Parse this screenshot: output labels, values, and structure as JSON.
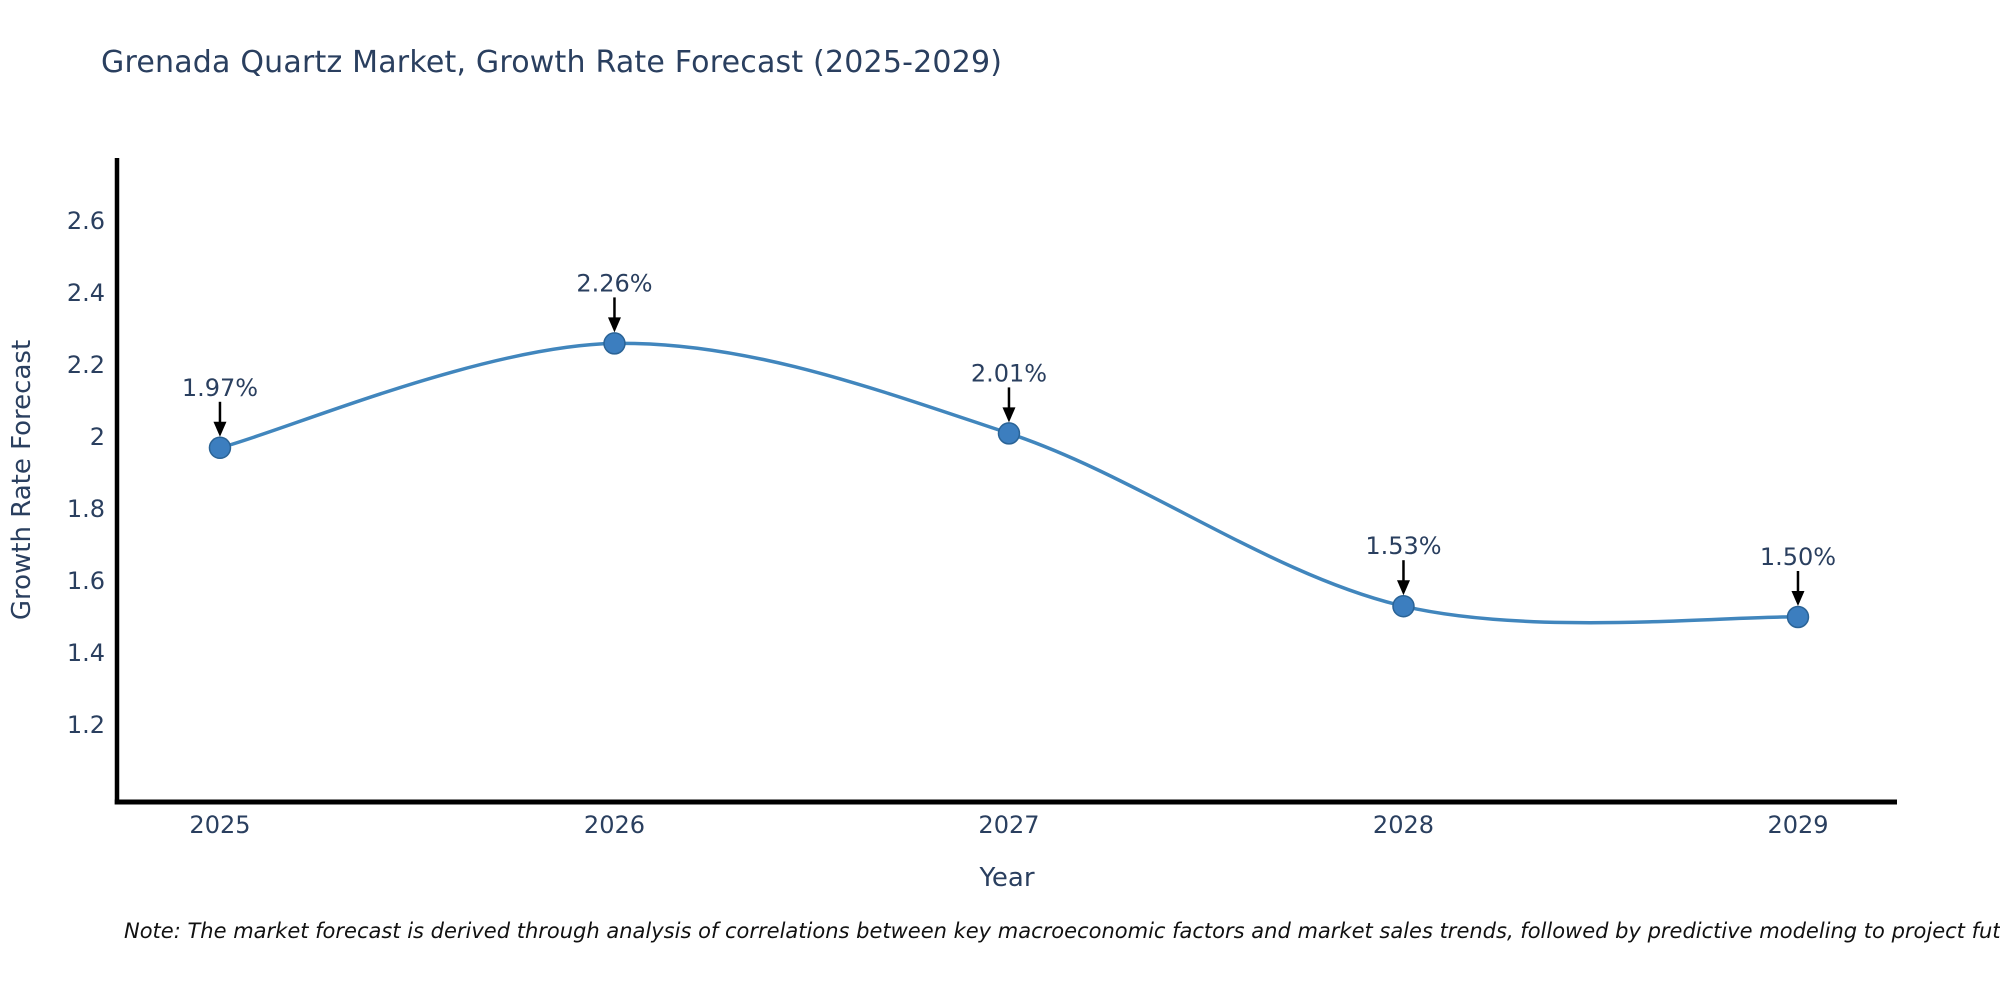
{
  "title": {
    "text": "Grenada Quartz Market, Growth Rate Forecast (2025-2029)"
  },
  "note": {
    "text": "Note: The market forecast is derived through analysis of correlations between key macroeconomic factors and market sales trends, followed by predictive modeling to project future sales."
  },
  "colors": {
    "text": "#2a3f5f",
    "line": "#4186bd",
    "marker": "#3c7ebf",
    "marker_border": "#2a6396",
    "arrow": "#000000",
    "axis": "#000000",
    "note_text": "#111111"
  },
  "chart_data": {
    "type": "line",
    "title": "Grenada Quartz Market, Growth Rate Forecast (2025-2029)",
    "x": [
      2025,
      2026,
      2027,
      2028,
      2029
    ],
    "series": [
      {
        "name": "Growth Rate Forecast",
        "values": [
          1.97,
          2.26,
          2.01,
          1.53,
          1.5
        ]
      }
    ],
    "point_labels": [
      "1.97%",
      "2.26%",
      "2.01%",
      "1.53%",
      "1.50%"
    ],
    "xlabel": "Year",
    "ylabel": "Growth Rate Forecast",
    "xtick_labels": [
      "2025",
      "2026",
      "2027",
      "2028",
      "2029"
    ],
    "ytick_values": [
      2.6,
      2.4,
      2.2,
      2.0,
      1.8,
      1.6,
      1.4,
      1.2
    ],
    "ytick_labels": [
      "2.6",
      "2.4",
      "2.2",
      "2",
      "1.8",
      "1.6",
      "1.4",
      "1.2"
    ],
    "xlim": [
      2024.739,
      2029.251
    ],
    "ylim": [
      0.9861,
      2.775
    ],
    "grid": false,
    "legend": false,
    "line_shape": "spline",
    "markers": true,
    "annotations": "value labels with down arrows above each point"
  }
}
